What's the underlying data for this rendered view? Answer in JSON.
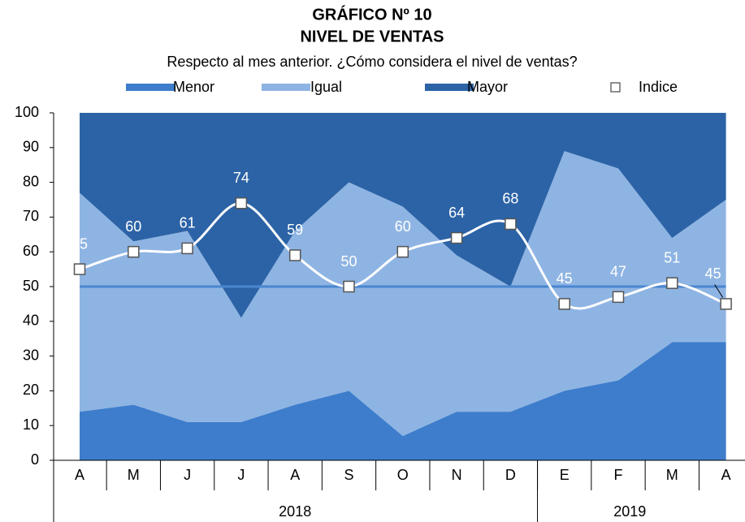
{
  "chart_data": {
    "type": "stacked_area_line",
    "title": "GRÁFICO Nº 10",
    "subtitle": "NIVEL DE VENTAS",
    "description": "Respecto al mes anterior. ¿Cómo considera el nivel de ventas?",
    "categories": [
      "A",
      "M",
      "J",
      "J",
      "A",
      "S",
      "O",
      "N",
      "D",
      "E",
      "F",
      "M",
      "A"
    ],
    "x_groups": [
      {
        "label": "2018",
        "count": 9
      },
      {
        "label": "2019",
        "count": 4
      }
    ],
    "series": [
      {
        "name": "Menor",
        "color": "#3d7dcc",
        "values": [
          14,
          16,
          11,
          11,
          16,
          20,
          7,
          14,
          14,
          20,
          23,
          34,
          34
        ]
      },
      {
        "name": "Igual",
        "color": "#8eb4e3",
        "values": [
          63,
          47,
          55,
          30,
          50,
          60,
          66,
          45,
          36,
          69,
          61,
          30,
          41
        ]
      },
      {
        "name": "Mayor",
        "color": "#2c63a6",
        "values": [
          23,
          37,
          34,
          59,
          34,
          20,
          27,
          41,
          50,
          11,
          16,
          36,
          25
        ]
      }
    ],
    "line": {
      "name": "Indice",
      "color": "#ffffff",
      "values": [
        55,
        60,
        61,
        74,
        59,
        50,
        60,
        64,
        68,
        45,
        47,
        51,
        45
      ]
    },
    "reference_line": {
      "value": 50,
      "color": "#4a86d0"
    },
    "ylim": [
      0,
      100
    ],
    "yticks": [
      0,
      10,
      20,
      30,
      40,
      50,
      60,
      70,
      80,
      90,
      100
    ]
  }
}
